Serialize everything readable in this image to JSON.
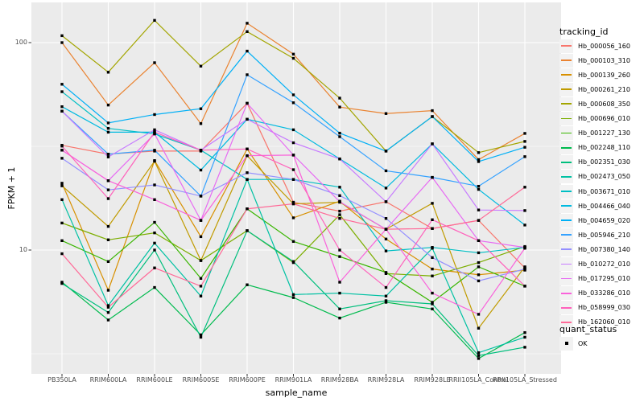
{
  "figure": {
    "background": "#FFFFFF",
    "panel_background": "#EBEBEB",
    "grid_color": "#FFFFFF",
    "tick_text_color": "#4D4D4D",
    "point_color": "#000000"
  },
  "axes": {
    "x_title": "sample_name",
    "y_title": "FPKM + 1",
    "y_tick_labels": [
      "100",
      "10"
    ]
  },
  "legend": {
    "tracking_title": "tracking_id",
    "quant_title": "quant_status",
    "quant_items": [
      {
        "label": "OK",
        "shape": "filled-square",
        "color": "#000000"
      }
    ]
  },
  "chart_data": {
    "type": "line",
    "title": "",
    "xlabel": "sample_name",
    "ylabel": "FPKM + 1",
    "y_scale": "log10",
    "y_major_ticks": [
      10,
      100
    ],
    "y_minor_gridlines": [
      3.162,
      31.62
    ],
    "ylim": [
      2.5,
      156
    ],
    "grid": true,
    "legend_position": "right",
    "point_shape": "filled-square",
    "categories": [
      "PB350LA",
      "RRIM600LA",
      "RRIM600LE",
      "RRIM600SE",
      "RRIM600PE",
      "RRIM901LA",
      "RRIM928BA",
      "RRIM928LA",
      "RRIM928LE",
      "RRII105LA_Control",
      "RRII105LA_Stressed"
    ],
    "series": [
      {
        "name": "Hb_000056_160",
        "color": "#F8766D",
        "values": [
          32,
          29,
          30,
          30,
          51,
          17,
          15.4,
          17.1,
          12.7,
          13.9,
          8.2
        ]
      },
      {
        "name": "Hb_000103_310",
        "color": "#EA8331",
        "values": [
          100,
          50,
          80,
          40.7,
          124,
          88,
          48.9,
          45.5,
          47,
          27.3,
          36.5
        ]
      },
      {
        "name": "Hb_000139_260",
        "color": "#D89000",
        "values": [
          21,
          6.4,
          27,
          11.6,
          30.7,
          14.3,
          17.2,
          11.3,
          8.1,
          7.6,
          8.0
        ]
      },
      {
        "name": "Hb_000261_210",
        "color": "#C09B00",
        "values": [
          20.4,
          13,
          26.8,
          8.9,
          28.5,
          16.7,
          17,
          12.6,
          16.8,
          4.2,
          8.3
        ]
      },
      {
        "name": "Hb_000608_350",
        "color": "#A3A500",
        "values": [
          108,
          72,
          128,
          77,
          113,
          84,
          54,
          30,
          44,
          29.5,
          33.4
        ]
      },
      {
        "name": "Hb_000696_010",
        "color": "#7CAE00",
        "values": [
          13.5,
          11.2,
          12.1,
          8.9,
          12.4,
          8.7,
          14.8,
          7.7,
          7.5,
          8.7,
          10.4
        ]
      },
      {
        "name": "Hb_001227_130",
        "color": "#39B600",
        "values": [
          11.1,
          8.8,
          13.6,
          7.3,
          15.8,
          11,
          9.3,
          7.8,
          5.6,
          8.3,
          6.7
        ]
      },
      {
        "name": "Hb_002248_110",
        "color": "#00BB4E",
        "values": [
          7.0,
          4.6,
          6.6,
          3.9,
          6.8,
          5.9,
          4.7,
          5.6,
          5.2,
          3.0,
          4.0
        ]
      },
      {
        "name": "Hb_002351_030",
        "color": "#00BF7D",
        "values": [
          6.9,
          5.0,
          10.0,
          3.8,
          12.4,
          8.8,
          5.2,
          5.7,
          5.5,
          3.1,
          3.4
        ]
      },
      {
        "name": "Hb_002473_050",
        "color": "#00C1A3",
        "values": [
          17.5,
          5.4,
          10.8,
          6.0,
          21.9,
          6.1,
          6.2,
          6.0,
          10.2,
          3.2,
          3.8
        ]
      },
      {
        "name": "Hb_003671_010",
        "color": "#00BFC4",
        "values": [
          58,
          38.6,
          36.3,
          30.3,
          21.9,
          21.9,
          20.1,
          9.9,
          10.3,
          9.7,
          10.3
        ]
      },
      {
        "name": "Hb_004466_040",
        "color": "#00BAE0",
        "values": [
          49.1,
          37,
          37,
          24.3,
          42.7,
          38,
          27.5,
          19.9,
          32.5,
          19.6,
          13.2
        ]
      },
      {
        "name": "Hb_004659_020",
        "color": "#00B0F6",
        "values": [
          63,
          41,
          45,
          48,
          91,
          56,
          36.6,
          30,
          44,
          26.7,
          31.3
        ]
      },
      {
        "name": "Hb_005946_210",
        "color": "#35A2FF",
        "values": [
          46.7,
          29,
          30.3,
          18.2,
          70,
          51.3,
          35.2,
          24.1,
          22.4,
          20.3,
          28.2
        ]
      },
      {
        "name": "Hb_007380_140",
        "color": "#9590FF",
        "values": [
          27.7,
          19.5,
          20.6,
          18.2,
          23.6,
          21.9,
          18.3,
          14.2,
          9.2,
          7.1,
          8.1
        ]
      },
      {
        "name": "Hb_010272_010",
        "color": "#C77CFF",
        "values": [
          46.7,
          28.1,
          38,
          30.3,
          42.7,
          32.9,
          27.5,
          17.1,
          32.5,
          15.6,
          15.5
        ]
      },
      {
        "name": "Hb_017295_010",
        "color": "#E76BF3",
        "values": [
          30.3,
          21.6,
          36.3,
          13.9,
          51,
          28.7,
          17.1,
          12.6,
          22.4,
          11.1,
          10.3
        ]
      },
      {
        "name": "Hb_033286_010",
        "color": "#FA62DB",
        "values": [
          30.3,
          21.6,
          17.5,
          13.9,
          28.5,
          28.7,
          7.0,
          12.6,
          6.2,
          4.9,
          10.2
        ]
      },
      {
        "name": "Hb_058999_030",
        "color": "#FF62BC",
        "values": [
          31.7,
          17.7,
          37,
          30.3,
          30.7,
          24.4,
          10.0,
          6.6,
          14.0,
          11.1,
          6.7
        ]
      },
      {
        "name": "Hb_162060_010",
        "color": "#FF6A98",
        "values": [
          9.6,
          5.3,
          8.2,
          6.7,
          15.8,
          16.7,
          14.2,
          12.6,
          12.7,
          13.9,
          20.1
        ]
      }
    ]
  }
}
